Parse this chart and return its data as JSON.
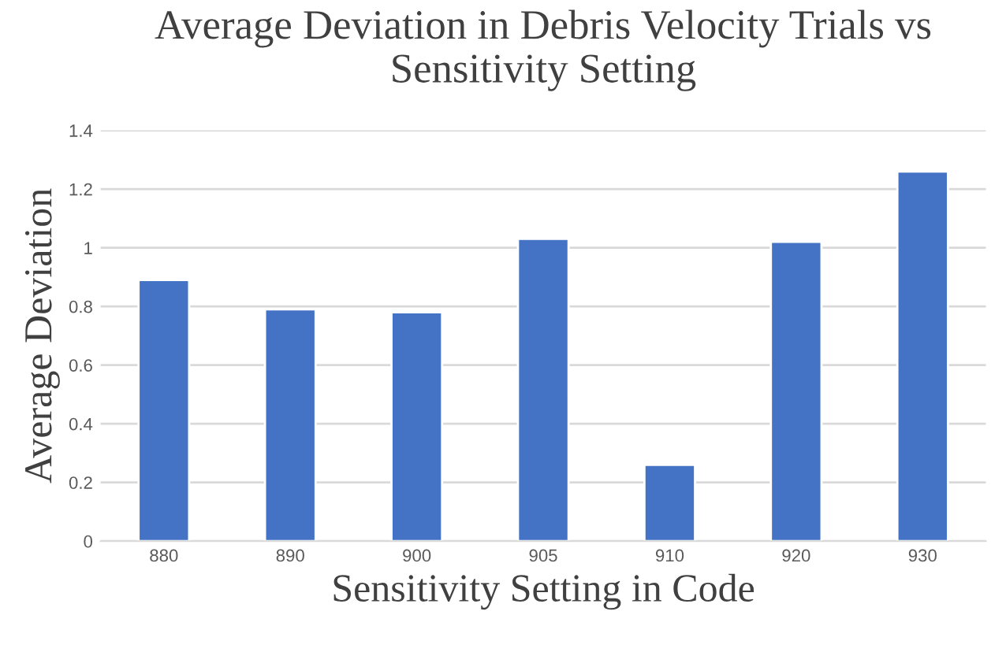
{
  "chart_data": {
    "type": "bar",
    "title": "Average Deviation in Debris Velocity Trials vs Sensitivity Setting",
    "xlabel": "Sensitivity Setting in Code",
    "ylabel": "Average Deviation",
    "categories": [
      "880",
      "890",
      "900",
      "905",
      "910",
      "920",
      "930"
    ],
    "values": [
      0.89,
      0.79,
      0.78,
      1.03,
      0.26,
      1.02,
      1.26
    ],
    "color": "#4472c4",
    "ylim": [
      0,
      1.4
    ],
    "yticks": [
      0,
      0.2,
      0.4,
      0.6,
      0.8,
      1,
      1.2,
      1.4
    ],
    "grid": "y",
    "legend": false
  }
}
